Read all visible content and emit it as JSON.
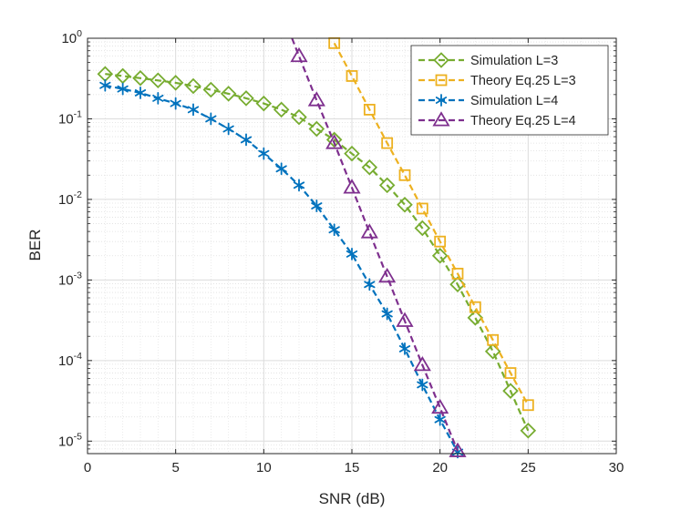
{
  "chart_data": {
    "type": "line",
    "title": "",
    "xlabel": "SNR (dB)",
    "ylabel": "BER",
    "xlim": [
      0,
      30
    ],
    "ylim": [
      7e-06,
      1
    ],
    "yscale": "log",
    "grid": true,
    "minor_grid": true,
    "legend_position": "top-right",
    "x_ticks": [
      "0",
      "5",
      "10",
      "15",
      "20",
      "25",
      "30"
    ],
    "y_ticks": [
      {
        "base": "10",
        "exp": "0",
        "value": 1
      },
      {
        "base": "10",
        "exp": "-1",
        "value": 0.1
      },
      {
        "base": "10",
        "exp": "-2",
        "value": 0.01
      },
      {
        "base": "10",
        "exp": "-3",
        "value": 0.001
      },
      {
        "base": "10",
        "exp": "-4",
        "value": 0.0001
      },
      {
        "base": "10",
        "exp": "-5",
        "value": 1e-05
      }
    ],
    "series": [
      {
        "name": "Simulation L=3",
        "color": "#77ac30",
        "marker": "diamond",
        "line_style": "dashed",
        "x": [
          1,
          2,
          3,
          4,
          5,
          6,
          7,
          8,
          9,
          10,
          11,
          12,
          13,
          14,
          15,
          16,
          17,
          18,
          19,
          20,
          21,
          22,
          23,
          24,
          25
        ],
        "y": [
          0.36,
          0.34,
          0.32,
          0.3,
          0.28,
          0.255,
          0.23,
          0.205,
          0.18,
          0.155,
          0.13,
          0.105,
          0.075,
          0.055,
          0.037,
          0.025,
          0.015,
          0.0086,
          0.0044,
          0.002,
          0.00088,
          0.00034,
          0.00013,
          4.2e-05,
          1.35e-05
        ]
      },
      {
        "name": "Theory Eq.25 L=3",
        "color": "#edb120",
        "marker": "square",
        "line_style": "dashed",
        "x": [
          14,
          15,
          16,
          17,
          18,
          19,
          20,
          21,
          22,
          23,
          24,
          25
        ],
        "y": [
          0.87,
          0.34,
          0.13,
          0.05,
          0.02,
          0.0077,
          0.003,
          0.0012,
          0.00046,
          0.00018,
          7e-05,
          2.8e-05
        ]
      },
      {
        "name": "Simulation L=4",
        "color": "#0072bd",
        "marker": "asterisk",
        "line_style": "dashed",
        "x": [
          1,
          2,
          3,
          4,
          5,
          6,
          7,
          8,
          9,
          10,
          11,
          12,
          13,
          14,
          15,
          16,
          17,
          18,
          19,
          20,
          21
        ],
        "y": [
          0.26,
          0.235,
          0.21,
          0.18,
          0.155,
          0.13,
          0.1,
          0.075,
          0.055,
          0.037,
          0.024,
          0.015,
          0.0083,
          0.0042,
          0.0021,
          0.00088,
          0.00038,
          0.00014,
          5e-05,
          1.85e-05,
          7.3e-06
        ]
      },
      {
        "name": "Theory Eq.25 L=4",
        "color": "#7e2f8e",
        "marker": "triangle",
        "line_style": "dashed",
        "line_start": {
          "x": 11.6,
          "y": 1.0
        },
        "x": [
          12,
          13,
          14,
          15,
          16,
          17,
          18,
          19,
          20,
          21
        ],
        "y": [
          0.6,
          0.17,
          0.05,
          0.014,
          0.0039,
          0.0011,
          0.00031,
          8.8e-05,
          2.6e-05,
          7.5e-06
        ]
      }
    ]
  }
}
